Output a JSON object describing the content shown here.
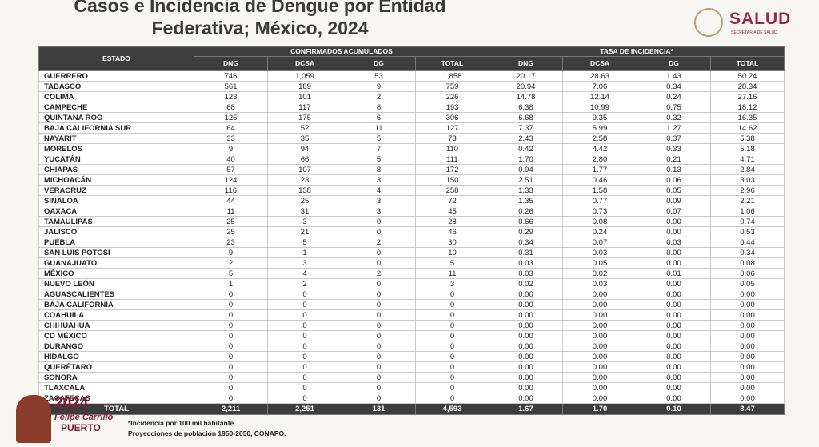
{
  "header": {
    "title_line1": "Casos e Incidencia de Dengue por Entidad",
    "title_line2": "Federativa; México, 2024",
    "logo": "SALUD",
    "logo_subtitle": "SECRETARÍA DE SALUD"
  },
  "table": {
    "state_header": "ESTADO",
    "groups": [
      "CONFIRMADOS ACUMULADOS",
      "TASA DE INCIDENCIA*"
    ],
    "columns": [
      "DNG",
      "DCSA",
      "DG",
      "TOTAL",
      "DNG",
      "DCSA",
      "DG",
      "TOTAL"
    ],
    "rows": [
      [
        "GUERRERO",
        "746",
        "1,059",
        "53",
        "1,858",
        "20.17",
        "28.63",
        "1.43",
        "50.24"
      ],
      [
        "TABASCO",
        "561",
        "189",
        "9",
        "759",
        "20.94",
        "7.06",
        "0.34",
        "28.34"
      ],
      [
        "COLIMA",
        "123",
        "101",
        "2",
        "226",
        "14.78",
        "12.14",
        "0.24",
        "27.16"
      ],
      [
        "CAMPECHE",
        "68",
        "117",
        "8",
        "193",
        "6.38",
        "10.99",
        "0.75",
        "18.12"
      ],
      [
        "QUINTANA ROO",
        "125",
        "175",
        "6",
        "306",
        "6.68",
        "9.35",
        "0.32",
        "16.35"
      ],
      [
        "BAJA CALIFORNIA SUR",
        "64",
        "52",
        "11",
        "127",
        "7.37",
        "5.99",
        "1.27",
        "14.62"
      ],
      [
        "NAYARIT",
        "33",
        "35",
        "5",
        "73",
        "2.43",
        "2.58",
        "0.37",
        "5.38"
      ],
      [
        "MORELOS",
        "9",
        "94",
        "7",
        "110",
        "0.42",
        "4.42",
        "0.33",
        "5.18"
      ],
      [
        "YUCATÁN",
        "40",
        "66",
        "5",
        "111",
        "1.70",
        "2.80",
        "0.21",
        "4.71"
      ],
      [
        "CHIAPAS",
        "57",
        "107",
        "8",
        "172",
        "0.94",
        "1.77",
        "0.13",
        "2.84"
      ],
      [
        "MICHOACÁN",
        "124",
        "23",
        "3",
        "150",
        "2.51",
        "0.46",
        "0.06",
        "3.03"
      ],
      [
        "VERACRUZ",
        "116",
        "138",
        "4",
        "258",
        "1.33",
        "1.58",
        "0.05",
        "2.96"
      ],
      [
        "SINALOA",
        "44",
        "25",
        "3",
        "72",
        "1.35",
        "0.77",
        "0.09",
        "2.21"
      ],
      [
        "OAXACA",
        "11",
        "31",
        "3",
        "45",
        "0.26",
        "0.73",
        "0.07",
        "1.06"
      ],
      [
        "TAMAULIPAS",
        "25",
        "3",
        "0",
        "28",
        "0.66",
        "0.08",
        "0.00",
        "0.74"
      ],
      [
        "JALISCO",
        "25",
        "21",
        "0",
        "46",
        "0.29",
        "0.24",
        "0.00",
        "0.53"
      ],
      [
        "PUEBLA",
        "23",
        "5",
        "2",
        "30",
        "0.34",
        "0.07",
        "0.03",
        "0.44"
      ],
      [
        "SAN LUIS POTOSÍ",
        "9",
        "1",
        "0",
        "10",
        "0.31",
        "0.03",
        "0.00",
        "0.34"
      ],
      [
        "GUANAJUATO",
        "2",
        "3",
        "0",
        "5",
        "0.03",
        "0.05",
        "0.00",
        "0.08"
      ],
      [
        "MÉXICO",
        "5",
        "4",
        "2",
        "11",
        "0.03",
        "0.02",
        "0.01",
        "0.06"
      ],
      [
        "NUEVO LEÓN",
        "1",
        "2",
        "0",
        "3",
        "0.02",
        "0.03",
        "0.00",
        "0.05"
      ],
      [
        "AGUASCALIENTES",
        "0",
        "0",
        "0",
        "0",
        "0.00",
        "0.00",
        "0.00",
        "0.00"
      ],
      [
        "BAJA CALIFORNIA",
        "0",
        "0",
        "0",
        "0",
        "0.00",
        "0.00",
        "0.00",
        "0.00"
      ],
      [
        "COAHUILA",
        "0",
        "0",
        "0",
        "0",
        "0.00",
        "0.00",
        "0.00",
        "0.00"
      ],
      [
        "CHIHUAHUA",
        "0",
        "0",
        "0",
        "0",
        "0.00",
        "0.00",
        "0.00",
        "0.00"
      ],
      [
        "CD MÉXICO",
        "0",
        "0",
        "0",
        "0",
        "0.00",
        "0.00",
        "0.00",
        "0.00"
      ],
      [
        "DURANGO",
        "0",
        "0",
        "0",
        "0",
        "0.00",
        "0.00",
        "0.00",
        "0.00"
      ],
      [
        "HIDALGO",
        "0",
        "0",
        "0",
        "0",
        "0.00",
        "0.00",
        "0.00",
        "0.00"
      ],
      [
        "QUERÉTARO",
        "0",
        "0",
        "0",
        "0",
        "0.00",
        "0.00",
        "0.00",
        "0.00"
      ],
      [
        "SONORA",
        "0",
        "0",
        "0",
        "0",
        "0.00",
        "0.00",
        "0.00",
        "0.00"
      ],
      [
        "TLAXCALA",
        "0",
        "0",
        "0",
        "0",
        "0.00",
        "0.00",
        "0.00",
        "0.00"
      ],
      [
        "ZACATECAS",
        "0",
        "0",
        "0",
        "0",
        "0.00",
        "0.00",
        "0.00",
        "0.00"
      ]
    ],
    "total": [
      "TOTAL",
      "2,211",
      "2,251",
      "131",
      "4,593",
      "1.67",
      "1.70",
      "0.10",
      "3.47"
    ]
  },
  "footnotes": [
    "*Incidencia por 100 mil habitante",
    "Proyecciones de población 1950-2050, CONAPO."
  ],
  "bottom_logo": {
    "year": "2024",
    "name_line1": "Felipe Carrillo",
    "name_line2": "PUERTO"
  }
}
